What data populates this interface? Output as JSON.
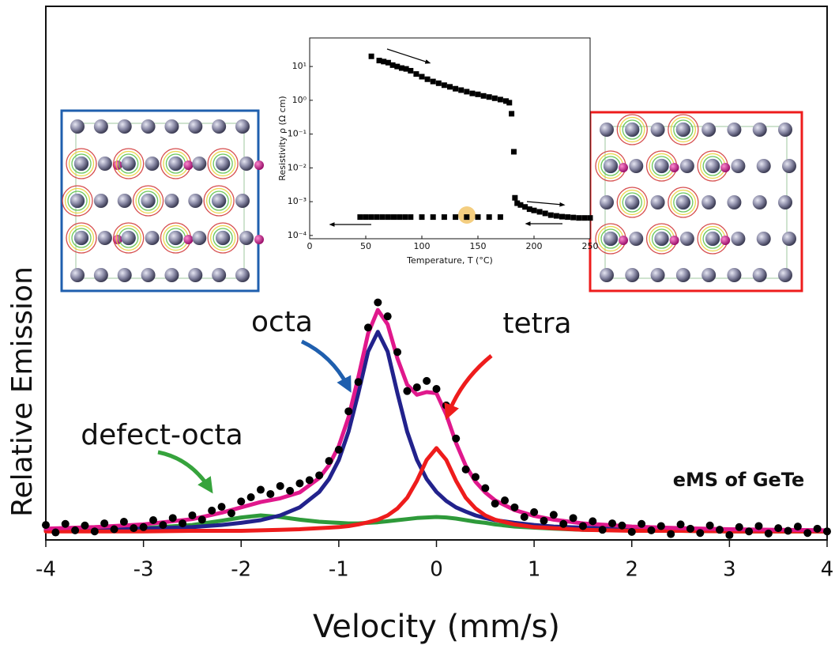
{
  "chart_data": [
    {
      "type": "line",
      "x_label": "Velocity (mm/s)",
      "y_label": "Relative Emission",
      "xlim": [
        -4,
        4
      ],
      "xticks": [
        -4,
        -3,
        -2,
        -1,
        0,
        1,
        2,
        3,
        4
      ],
      "ylim": [
        0,
        1
      ],
      "annotation": "eMS of GeTe",
      "x": [
        -4,
        -3.5,
        -3,
        -2.5,
        -2.2,
        -2,
        -1.8,
        -1.6,
        -1.4,
        -1.2,
        -1.1,
        -1,
        -0.9,
        -0.8,
        -0.7,
        -0.6,
        -0.5,
        -0.4,
        -0.3,
        -0.2,
        -0.1,
        0,
        0.1,
        0.2,
        0.3,
        0.4,
        0.5,
        0.6,
        0.8,
        1,
        1.2,
        1.5,
        2,
        2.5,
        3,
        3.5,
        4
      ],
      "series": [
        {
          "name": "defect-octa",
          "color": "#2e9a3a",
          "label_color": "#36a33c",
          "values": [
            0.018,
            0.019,
            0.022,
            0.028,
            0.036,
            0.042,
            0.046,
            0.043,
            0.038,
            0.034,
            0.033,
            0.032,
            0.031,
            0.031,
            0.032,
            0.033,
            0.035,
            0.037,
            0.039,
            0.041,
            0.042,
            0.043,
            0.042,
            0.04,
            0.037,
            0.034,
            0.032,
            0.029,
            0.025,
            0.023,
            0.021,
            0.019,
            0.018,
            0.017,
            0.016,
            0.016,
            0.016
          ]
        },
        {
          "name": "octa",
          "color": "#22228c",
          "label_color": "#1f4f9f",
          "values": [
            0.018,
            0.019,
            0.021,
            0.024,
            0.028,
            0.032,
            0.037,
            0.046,
            0.061,
            0.09,
            0.114,
            0.15,
            0.203,
            0.275,
            0.353,
            0.39,
            0.353,
            0.275,
            0.203,
            0.15,
            0.114,
            0.09,
            0.073,
            0.061,
            0.053,
            0.046,
            0.041,
            0.037,
            0.032,
            0.028,
            0.025,
            0.023,
            0.02,
            0.019,
            0.018,
            0.017,
            0.017
          ]
        },
        {
          "name": "tetra",
          "color": "#ee1c1c",
          "label_color": "#ee1c1c",
          "values": [
            0.016,
            0.016,
            0.016,
            0.017,
            0.017,
            0.017,
            0.018,
            0.019,
            0.02,
            0.022,
            0.023,
            0.024,
            0.026,
            0.029,
            0.033,
            0.038,
            0.046,
            0.059,
            0.079,
            0.111,
            0.15,
            0.172,
            0.15,
            0.111,
            0.079,
            0.059,
            0.046,
            0.038,
            0.029,
            0.024,
            0.022,
            0.019,
            0.017,
            0.017,
            0.016,
            0.016,
            0.016
          ]
        },
        {
          "color": "#e0188c",
          "values": [
            0.021,
            0.024,
            0.029,
            0.039,
            0.051,
            0.061,
            0.071,
            0.078,
            0.089,
            0.116,
            0.14,
            0.176,
            0.23,
            0.305,
            0.387,
            0.431,
            0.404,
            0.34,
            0.291,
            0.272,
            0.277,
            0.275,
            0.235,
            0.182,
            0.139,
            0.109,
            0.089,
            0.074,
            0.056,
            0.045,
            0.038,
            0.031,
            0.025,
            0.022,
            0.02,
            0.019,
            0.018
          ]
        }
      ],
      "points": {
        "color": "#000000",
        "x": [
          -4,
          -3.9,
          -3.8,
          -3.7,
          -3.6,
          -3.5,
          -3.4,
          -3.3,
          -3.2,
          -3.1,
          -3,
          -2.9,
          -2.8,
          -2.7,
          -2.6,
          -2.5,
          -2.4,
          -2.3,
          -2.2,
          -2.1,
          -2,
          -1.9,
          -1.8,
          -1.7,
          -1.6,
          -1.5,
          -1.4,
          -1.3,
          -1.2,
          -1.1,
          -1,
          -0.9,
          -0.8,
          -0.7,
          -0.6,
          -0.5,
          -0.4,
          -0.3,
          -0.2,
          -0.1,
          0,
          0.1,
          0.2,
          0.3,
          0.4,
          0.5,
          0.6,
          0.7,
          0.8,
          0.9,
          1,
          1.1,
          1.2,
          1.3,
          1.4,
          1.5,
          1.6,
          1.7,
          1.8,
          1.9,
          2,
          2.1,
          2.2,
          2.3,
          2.4,
          2.5,
          2.6,
          2.7,
          2.8,
          2.9,
          3,
          3.1,
          3.2,
          3.3,
          3.4,
          3.5,
          3.6,
          3.7,
          3.8,
          3.9,
          4
        ],
        "values": [
          0.028,
          0.014,
          0.03,
          0.018,
          0.027,
          0.016,
          0.031,
          0.02,
          0.034,
          0.022,
          0.024,
          0.037,
          0.028,
          0.041,
          0.031,
          0.046,
          0.038,
          0.055,
          0.062,
          0.05,
          0.072,
          0.08,
          0.094,
          0.086,
          0.101,
          0.092,
          0.106,
          0.112,
          0.121,
          0.148,
          0.169,
          0.241,
          0.296,
          0.398,
          0.445,
          0.419,
          0.352,
          0.279,
          0.286,
          0.298,
          0.283,
          0.252,
          0.19,
          0.132,
          0.118,
          0.097,
          0.068,
          0.074,
          0.061,
          0.043,
          0.052,
          0.036,
          0.047,
          0.03,
          0.041,
          0.026,
          0.035,
          0.019,
          0.031,
          0.027,
          0.015,
          0.03,
          0.018,
          0.026,
          0.011,
          0.029,
          0.021,
          0.013,
          0.027,
          0.019,
          0.009,
          0.024,
          0.016,
          0.026,
          0.012,
          0.022,
          0.017,
          0.025,
          0.013,
          0.021,
          0.016
        ]
      }
    },
    {
      "type": "scatter",
      "x_label": "Temperature, T (°C)",
      "y_label": "Resistivity ρ (Ω cm)",
      "log_y": true,
      "xlim": [
        0,
        250
      ],
      "xticks": [
        0,
        50,
        100,
        150,
        200,
        250
      ],
      "ylim": [
        8e-05,
        70
      ],
      "yticks": [
        {
          "value": 0.0001,
          "label": "10⁻⁴"
        },
        {
          "value": 0.001,
          "label": "10⁻³"
        },
        {
          "value": 0.01,
          "label": "10⁻²"
        },
        {
          "value": 0.1,
          "label": "10⁻¹"
        },
        {
          "value": 1,
          "label": "10⁰"
        },
        {
          "value": 10,
          "label": "10¹"
        }
      ],
      "series": [
        {
          "color": "#000000",
          "x": [
            55,
            62,
            66,
            70,
            74,
            78,
            82,
            86,
            90,
            95,
            100,
            105,
            110,
            115,
            120,
            125,
            130,
            135,
            140,
            145,
            150,
            155,
            160,
            165,
            170,
            175,
            178,
            180,
            182,
            183,
            185,
            188,
            192,
            196,
            200,
            205,
            210,
            215,
            220,
            225,
            230,
            235,
            240,
            245,
            250
          ],
          "values": [
            20,
            15,
            14,
            13,
            11,
            10,
            9,
            8.5,
            7.5,
            6,
            5,
            4.2,
            3.6,
            3.2,
            2.8,
            2.5,
            2.2,
            2,
            1.8,
            1.6,
            1.5,
            1.35,
            1.25,
            1.15,
            1.05,
            0.95,
            0.85,
            0.4,
            0.03,
            0.0013,
            0.0009,
            0.0008,
            0.0007,
            0.0006,
            0.00055,
            0.0005,
            0.00045,
            0.0004,
            0.00038,
            0.00036,
            0.00035,
            0.00034,
            0.00033,
            0.00033,
            0.00033
          ]
        },
        {
          "color": "#000000",
          "x": [
            45,
            50,
            55,
            60,
            65,
            70,
            75,
            80,
            85,
            90,
            100,
            110,
            120,
            130,
            140,
            150,
            160,
            170
          ],
          "values": [
            0.00035,
            0.00035,
            0.00035,
            0.00035,
            0.00035,
            0.00035,
            0.00035,
            0.00035,
            0.00035,
            0.00035,
            0.00035,
            0.00035,
            0.00035,
            0.00035,
            0.00035,
            0.00035,
            0.00035,
            0.00035
          ]
        }
      ]
    }
  ]
}
